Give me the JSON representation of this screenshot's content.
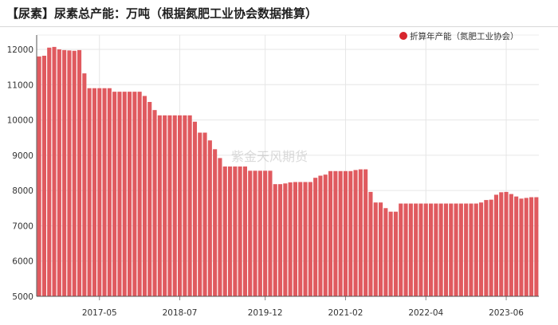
{
  "title": "【尿素】尿素总产能：万吨（根据氮肥工业协会数据推算）",
  "watermark": "紫金天风期货",
  "chart_data": {
    "type": "bar",
    "series": [
      {
        "name": "折算年产能（氮肥工业协会）",
        "color": "#e05a5f",
        "values": [
          11800,
          11820,
          12050,
          12070,
          12000,
          11980,
          11970,
          11960,
          11980,
          11320,
          10900,
          10900,
          10900,
          10900,
          10900,
          10800,
          10800,
          10800,
          10800,
          10800,
          10800,
          10680,
          10510,
          10280,
          10130,
          10130,
          10130,
          10130,
          10130,
          10130,
          10130,
          9950,
          9640,
          9640,
          9420,
          9170,
          8920,
          8680,
          8680,
          8680,
          8680,
          8680,
          8560,
          8560,
          8560,
          8560,
          8560,
          8180,
          8180,
          8200,
          8230,
          8240,
          8240,
          8240,
          8240,
          8360,
          8420,
          8450,
          8550,
          8550,
          8550,
          8550,
          8550,
          8580,
          8600,
          8600,
          7960,
          7660,
          7660,
          7500,
          7400,
          7400,
          7630,
          7630,
          7630,
          7630,
          7630,
          7630,
          7630,
          7630,
          7630,
          7630,
          7630,
          7630,
          7630,
          7630,
          7630,
          7630,
          7660,
          7730,
          7740,
          7880,
          7950,
          7960,
          7900,
          7830,
          7770,
          7790,
          7810,
          7810
        ]
      }
    ],
    "x_tick_labels": [
      "2017-05",
      "2018-07",
      "2019-12",
      "2021-02",
      "2022-04",
      "2023-06"
    ],
    "x_tick_index": [
      12,
      28,
      45,
      61,
      77,
      93
    ],
    "ylim": [
      5000,
      12000
    ],
    "yticks": [
      5000,
      6000,
      7000,
      8000,
      9000,
      10000,
      11000,
      12000
    ],
    "grid": true,
    "legend_position": "top-right"
  }
}
